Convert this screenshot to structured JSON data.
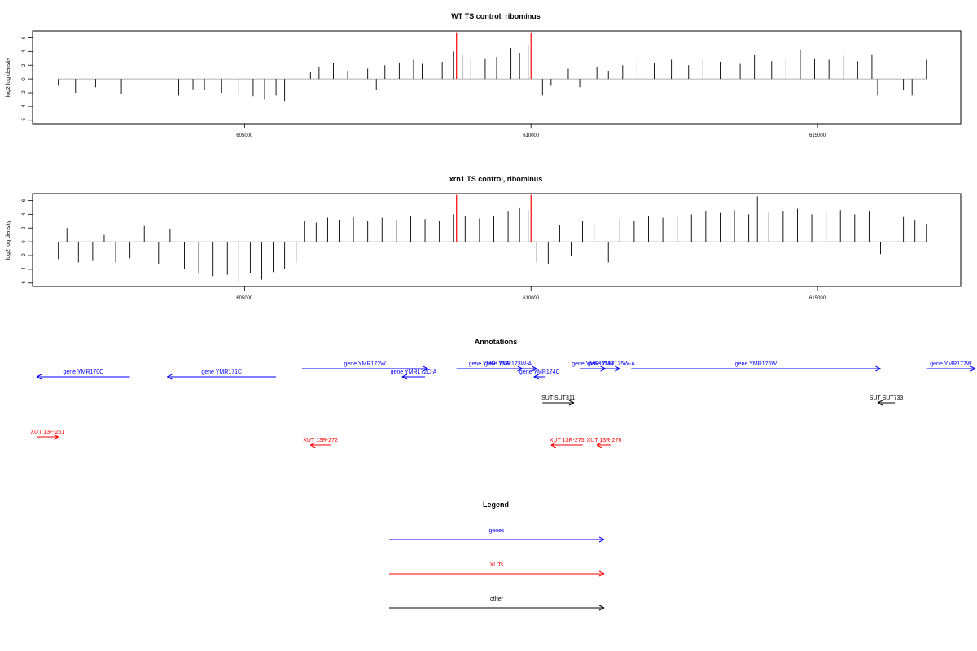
{
  "chart_data": [
    {
      "type": "bar",
      "title": "WT TS control, ribominus",
      "xlabel": "",
      "ylabel": "log2 log density",
      "xlim": [
        601300,
        617500
      ],
      "ylim": [
        -6.5,
        7.0
      ],
      "x_ticks": [
        605000,
        610000,
        615000
      ],
      "y_ticks": [
        6,
        4,
        2,
        0,
        -2,
        -4,
        -6
      ],
      "grid": false,
      "markers": [
        {
          "x": 608700,
          "color": "#ff0000"
        },
        {
          "x": 610000,
          "color": "#ff0000"
        }
      ],
      "series": [
        {
          "values": [
            [
              601750,
              -1.0
            ],
            [
              602050,
              -2.0
            ],
            [
              602400,
              -1.2
            ],
            [
              602600,
              -1.5
            ],
            [
              602850,
              -2.2
            ],
            [
              603850,
              -2.4
            ],
            [
              604100,
              -1.5
            ],
            [
              604300,
              -1.6
            ],
            [
              604600,
              -2.0
            ],
            [
              604900,
              -2.3
            ],
            [
              605150,
              -2.5
            ],
            [
              605350,
              -3.0
            ],
            [
              605550,
              -2.4
            ],
            [
              605700,
              -3.2
            ],
            [
              606150,
              1.0
            ],
            [
              606300,
              1.8
            ],
            [
              606550,
              2.3
            ],
            [
              606800,
              1.2
            ],
            [
              607150,
              1.5
            ],
            [
              607300,
              -1.6
            ],
            [
              607450,
              2.0
            ],
            [
              607700,
              2.4
            ],
            [
              607950,
              2.8
            ],
            [
              608100,
              2.2
            ],
            [
              608450,
              2.5
            ],
            [
              608650,
              4.0
            ],
            [
              608800,
              3.5
            ],
            [
              608950,
              2.8
            ],
            [
              609200,
              3.0
            ],
            [
              609400,
              3.2
            ],
            [
              609650,
              4.5
            ],
            [
              609800,
              3.8
            ],
            [
              609950,
              5.0
            ],
            [
              610200,
              -2.4
            ],
            [
              610350,
              -1.0
            ],
            [
              610650,
              1.5
            ],
            [
              610850,
              -1.2
            ],
            [
              611150,
              1.8
            ],
            [
              611350,
              1.2
            ],
            [
              611600,
              2.0
            ],
            [
              611850,
              3.2
            ],
            [
              612150,
              2.3
            ],
            [
              612450,
              2.8
            ],
            [
              612750,
              2.0
            ],
            [
              613000,
              3.0
            ],
            [
              613300,
              2.5
            ],
            [
              613650,
              2.2
            ],
            [
              613900,
              3.5
            ],
            [
              614200,
              2.6
            ],
            [
              614450,
              3.0
            ],
            [
              614700,
              4.2
            ],
            [
              614950,
              3.0
            ],
            [
              615200,
              2.8
            ],
            [
              615450,
              3.4
            ],
            [
              615700,
              2.6
            ],
            [
              615950,
              3.6
            ],
            [
              616050,
              -2.4
            ],
            [
              616300,
              2.5
            ],
            [
              616500,
              -1.6
            ],
            [
              616650,
              -2.4
            ],
            [
              616900,
              2.8
            ]
          ]
        }
      ]
    },
    {
      "type": "bar",
      "title": "xrn1 TS control, ribominus",
      "xlabel": "",
      "ylabel": "log2 log density",
      "xlim": [
        601300,
        617500
      ],
      "ylim": [
        -6.5,
        7.0
      ],
      "x_ticks": [
        605000,
        610000,
        615000
      ],
      "y_ticks": [
        6,
        4,
        2,
        0,
        -2,
        -4,
        -6
      ],
      "grid": false,
      "markers": [
        {
          "x": 608700,
          "color": "#ff0000"
        },
        {
          "x": 610000,
          "color": "#ff0000"
        }
      ],
      "series": [
        {
          "values": [
            [
              601750,
              -2.5
            ],
            [
              601900,
              2.0
            ],
            [
              602100,
              -3.0
            ],
            [
              602350,
              -2.8
            ],
            [
              602550,
              1.0
            ],
            [
              602750,
              -3.0
            ],
            [
              603000,
              -2.4
            ],
            [
              603250,
              2.3
            ],
            [
              603500,
              -3.3
            ],
            [
              603700,
              1.8
            ],
            [
              603950,
              -4.0
            ],
            [
              604200,
              -4.5
            ],
            [
              604450,
              -5.0
            ],
            [
              604700,
              -4.8
            ],
            [
              604900,
              -5.8
            ],
            [
              605100,
              -4.6
            ],
            [
              605300,
              -5.5
            ],
            [
              605500,
              -4.4
            ],
            [
              605700,
              -4.0
            ],
            [
              605900,
              -3.0
            ],
            [
              606050,
              3.0
            ],
            [
              606250,
              2.8
            ],
            [
              606450,
              3.5
            ],
            [
              606650,
              3.2
            ],
            [
              606900,
              3.6
            ],
            [
              607150,
              3.0
            ],
            [
              607400,
              3.5
            ],
            [
              607650,
              3.2
            ],
            [
              607900,
              3.8
            ],
            [
              608150,
              3.3
            ],
            [
              608400,
              3.0
            ],
            [
              608650,
              4.0
            ],
            [
              608850,
              3.8
            ],
            [
              609100,
              3.4
            ],
            [
              609350,
              3.7
            ],
            [
              609600,
              4.5
            ],
            [
              609800,
              5.0
            ],
            [
              609950,
              4.6
            ],
            [
              610100,
              -3.0
            ],
            [
              610300,
              -3.2
            ],
            [
              610500,
              2.5
            ],
            [
              610700,
              -2.0
            ],
            [
              610900,
              3.0
            ],
            [
              611100,
              2.6
            ],
            [
              611350,
              -3.0
            ],
            [
              611550,
              3.4
            ],
            [
              611800,
              3.0
            ],
            [
              612050,
              3.8
            ],
            [
              612300,
              3.5
            ],
            [
              612550,
              3.8
            ],
            [
              612800,
              4.0
            ],
            [
              613050,
              4.5
            ],
            [
              613300,
              4.2
            ],
            [
              613550,
              4.6
            ],
            [
              613800,
              4.0
            ],
            [
              613950,
              6.6
            ],
            [
              614150,
              4.4
            ],
            [
              614400,
              4.5
            ],
            [
              614650,
              4.8
            ],
            [
              614900,
              4.0
            ],
            [
              615150,
              4.3
            ],
            [
              615400,
              4.6
            ],
            [
              615650,
              4.0
            ],
            [
              615900,
              4.5
            ],
            [
              616100,
              -1.8
            ],
            [
              616300,
              3.0
            ],
            [
              616500,
              3.6
            ],
            [
              616700,
              3.2
            ],
            [
              616900,
              2.6
            ]
          ]
        }
      ]
    }
  ],
  "annotations": {
    "title": "Annotations",
    "genes": [
      {
        "label": "gene YMR170C",
        "start": 601300,
        "end": 603000,
        "strand": "-",
        "row": 1
      },
      {
        "label": "gene YMR171C",
        "start": 603650,
        "end": 605550,
        "strand": "-",
        "row": 1
      },
      {
        "label": "gene YMR172W",
        "start": 606000,
        "end": 608200,
        "strand": "+",
        "row": 0
      },
      {
        "label": "gene YMR172C-A",
        "start": 607750,
        "end": 608150,
        "strand": "-",
        "row": 1
      },
      {
        "label": "gene YMR173W",
        "start": 608700,
        "end": 609850,
        "strand": "+",
        "row": 0
      },
      {
        "label": "gene YMR173W-A",
        "start": 609100,
        "end": 610100,
        "strand": "+",
        "row": 0
      },
      {
        "label": "gene YMR174C",
        "start": 610050,
        "end": 610250,
        "strand": "-",
        "row": 1
      },
      {
        "label": "gene YMR175W",
        "start": 610850,
        "end": 611300,
        "strand": "+",
        "row": 0
      },
      {
        "label": "gene YMR175W-A",
        "start": 611250,
        "end": 611550,
        "strand": "+",
        "row": 0
      },
      {
        "label": "gene YMR176W",
        "start": 611750,
        "end": 616100,
        "strand": "+",
        "row": 0
      },
      {
        "label": "gene YMR177W",
        "start": 616900,
        "end": 618200,
        "strand": "+",
        "row": 0
      }
    ],
    "xuts": [
      {
        "label": "XUT 13F-261",
        "start": 601200,
        "end": 601750,
        "strand": "+",
        "row": 0
      },
      {
        "label": "XUT 13R-272",
        "start": 606150,
        "end": 606500,
        "strand": "-",
        "row": 1
      },
      {
        "label": "XUT 13R-275",
        "start": 610350,
        "end": 610900,
        "strand": "-",
        "row": 1
      },
      {
        "label": "XUT 13R-276",
        "start": 611150,
        "end": 611400,
        "strand": "-",
        "row": 1
      }
    ],
    "other": [
      {
        "label": "SUT SUT311",
        "start": 610200,
        "end": 610750,
        "strand": "+",
        "row": 0
      },
      {
        "label": "SUT SUT733",
        "start": 616050,
        "end": 616350,
        "strand": "-",
        "row": 0
      }
    ]
  },
  "legend": {
    "title": "Legend",
    "items": [
      {
        "label": "genes",
        "color": "#0000ff"
      },
      {
        "label": "XUTs",
        "color": "#ff0000"
      },
      {
        "label": "other",
        "color": "#000000"
      }
    ]
  }
}
